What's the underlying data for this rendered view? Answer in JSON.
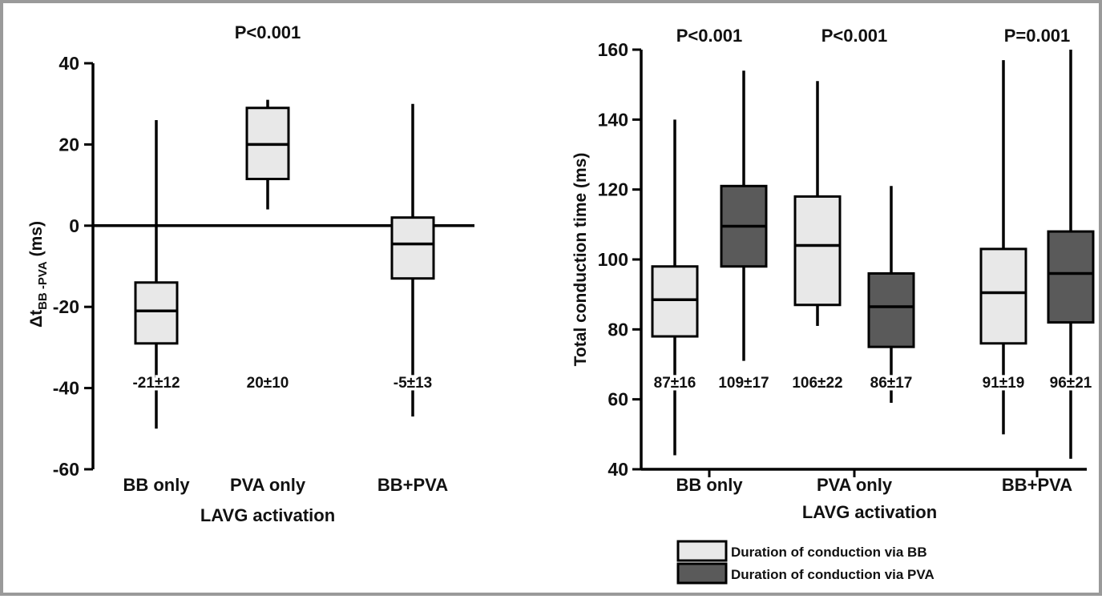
{
  "colors": {
    "light_box": "#e8e8e8",
    "dark_box": "#5a5a5a",
    "line": "#000000",
    "frame": "#9a9a9a"
  },
  "chart_data": [
    {
      "type": "boxplot",
      "ylabel_main": "Δt",
      "ylabel_sub": "BB -PVA",
      "ylabel_unit": "(ms)",
      "xlabel": "LAVG activation",
      "ylim": [
        -60,
        40
      ],
      "yticks": [
        40,
        20,
        0,
        -20,
        -40,
        -60
      ],
      "zero_line": true,
      "annotations": [
        {
          "text": "P<0.001",
          "category": "PVA only"
        }
      ],
      "categories": [
        "BB only",
        "PVA only",
        "BB+PVA"
      ],
      "series": [
        {
          "color": "#e8e8e8",
          "boxes": [
            {
              "category": "BB only",
              "min": -50,
              "q1": -29,
              "median": -21,
              "q3": -14,
              "max": 26,
              "label": "-21±12"
            },
            {
              "category": "PVA only",
              "min": 4,
              "q1": 11.5,
              "median": 20,
              "q3": 29,
              "max": 31,
              "label": "20±10"
            },
            {
              "category": "BB+PVA",
              "min": -47,
              "q1": -13,
              "median": -4.5,
              "q3": 2,
              "max": 30,
              "label": "-5±13"
            }
          ]
        }
      ]
    },
    {
      "type": "boxplot",
      "ylabel": "Total conduction time (ms)",
      "xlabel": "LAVG activation",
      "ylim": [
        40,
        160
      ],
      "yticks": [
        160,
        140,
        120,
        100,
        80,
        60,
        40
      ],
      "categories": [
        "BB only",
        "PVA only",
        "BB+PVA"
      ],
      "p_values": [
        "P<0.001",
        "P<0.001",
        "P=0.001"
      ],
      "series": [
        {
          "name": "Duration of conduction via BB",
          "color": "#e8e8e8",
          "boxes": [
            {
              "category": "BB only",
              "min": 44,
              "q1": 78,
              "median": 88.5,
              "q3": 98,
              "max": 140,
              "label": "87±16"
            },
            {
              "category": "PVA only",
              "min": 81,
              "q1": 87,
              "median": 104,
              "q3": 118,
              "max": 151,
              "label": "106±22"
            },
            {
              "category": "BB+PVA",
              "min": 50,
              "q1": 76,
              "median": 90.5,
              "q3": 103,
              "max": 157,
              "label": "91±19"
            }
          ]
        },
        {
          "name": "Duration of conduction via PVA",
          "color": "#5a5a5a",
          "boxes": [
            {
              "category": "BB only",
              "min": 71,
              "q1": 98,
              "median": 109.5,
              "q3": 121,
              "max": 154,
              "label": "109±17"
            },
            {
              "category": "PVA only",
              "min": 59,
              "q1": 75,
              "median": 86.5,
              "q3": 96,
              "max": 121,
              "label": "86±17"
            },
            {
              "category": "BB+PVA",
              "min": 43,
              "q1": 82,
              "median": 96,
              "q3": 108,
              "max": 160,
              "label": "96±21"
            }
          ]
        }
      ]
    }
  ]
}
